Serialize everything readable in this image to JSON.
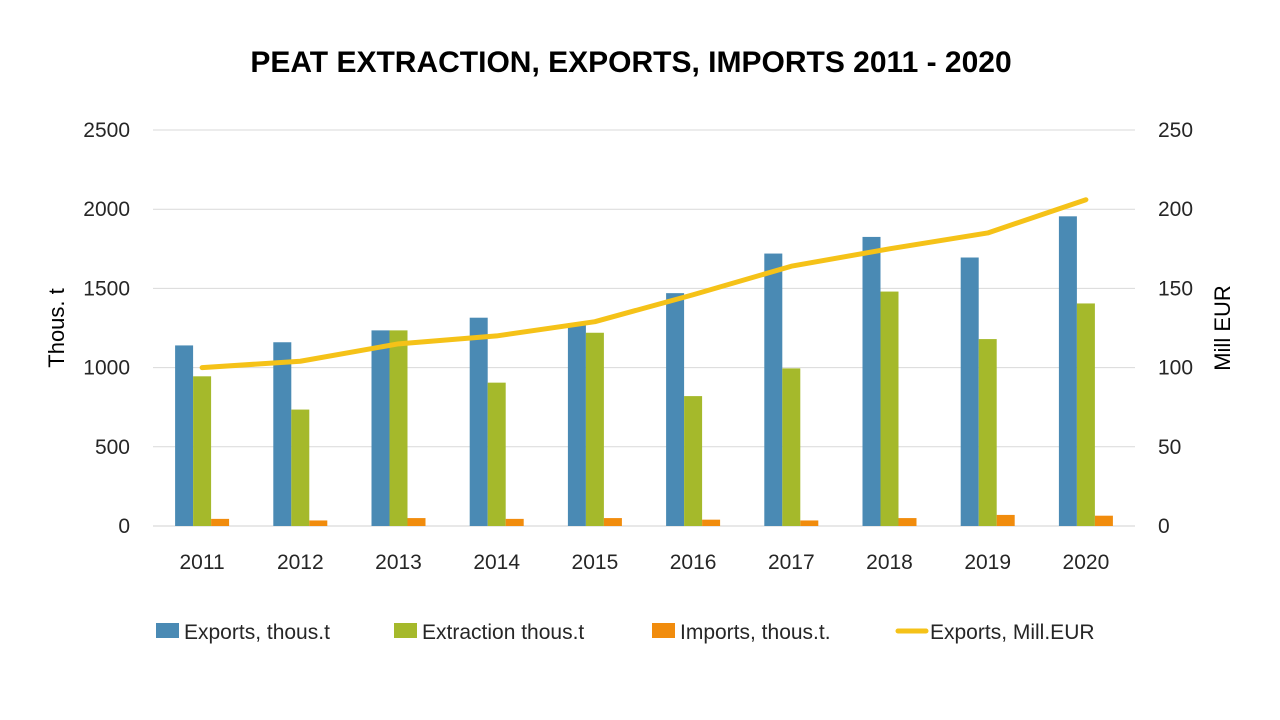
{
  "chart_data": {
    "type": "bar",
    "title": "PEAT EXTRACTION, EXPORTS, IMPORTS 2011 - 2020",
    "ylabel": "Thous. t",
    "y2label": "Mill EUR",
    "categories": [
      "2011",
      "2012",
      "2013",
      "2014",
      "2015",
      "2016",
      "2017",
      "2018",
      "2019",
      "2020"
    ],
    "ylim": [
      0,
      2500
    ],
    "yticks": [
      0,
      500,
      1000,
      1500,
      2000,
      2500
    ],
    "y2lim": [
      0,
      250
    ],
    "y2ticks": [
      0,
      50,
      100,
      150,
      200,
      250
    ],
    "grid": true,
    "legend_position": "bottom",
    "series": [
      {
        "name": "Exports, thous.t",
        "type": "bar",
        "axis": "left",
        "color": "#4a8ab4",
        "values": [
          1140,
          1160,
          1235,
          1315,
          1280,
          1470,
          1720,
          1825,
          1695,
          1955
        ]
      },
      {
        "name": "Extraction thous.t",
        "type": "bar",
        "axis": "left",
        "color": "#a5b92b",
        "values": [
          945,
          735,
          1235,
          905,
          1220,
          820,
          995,
          1480,
          1180,
          1405
        ]
      },
      {
        "name": "Imports, thous.t.",
        "type": "bar",
        "axis": "left",
        "color": "#f18c0d",
        "values": [
          45,
          35,
          50,
          45,
          50,
          40,
          35,
          50,
          70,
          65
        ]
      },
      {
        "name": "Exports, Mill.EUR",
        "type": "line",
        "axis": "right",
        "color": "#f5c218",
        "values": [
          100,
          104,
          115,
          120,
          129,
          146,
          164,
          175,
          185,
          206
        ]
      }
    ]
  }
}
